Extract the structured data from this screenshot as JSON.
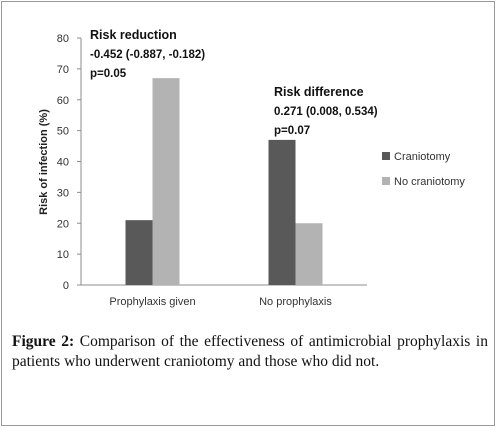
{
  "chart_data": {
    "type": "bar",
    "categories": [
      "Prophylaxis given",
      "No prophylaxis"
    ],
    "series": [
      {
        "name": "Craniotomy",
        "values": [
          21,
          47
        ],
        "color": "#595959"
      },
      {
        "name": "No craniotomy",
        "values": [
          67,
          20
        ],
        "color": "#b3b3b3"
      }
    ],
    "ylabel": "Risk of infection (%)",
    "ylim": [
      0,
      80
    ],
    "yticks": [
      0,
      10,
      20,
      30,
      40,
      50,
      60,
      70,
      80
    ],
    "grid": false,
    "legend_position": "right",
    "annotations": [
      {
        "lines": [
          "Risk reduction",
          "-0.452 (-0.887, -0.182)",
          "p=0.05"
        ]
      },
      {
        "lines": [
          "Risk difference",
          "0.271 (0.008, 0.534)",
          "p=0.07"
        ]
      }
    ]
  },
  "caption": {
    "label": "Figure 2:",
    "text": " Comparison of the effectiveness of antimicrobial prophylaxis in patients who underwent craniotomy and those who did not."
  }
}
